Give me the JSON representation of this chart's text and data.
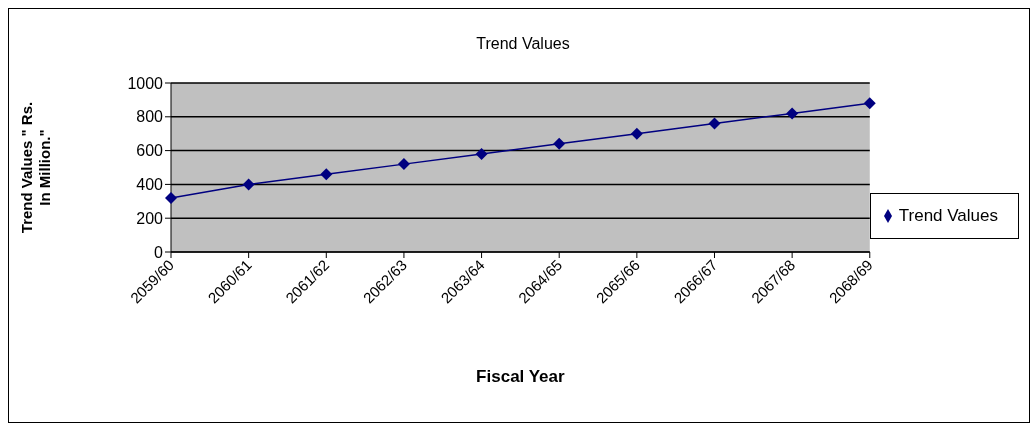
{
  "chart_data": {
    "type": "line",
    "title": "Trend Values",
    "xlabel": "Fiscal Year",
    "ylabel": "Trend Values \" Rs. In Million.\"",
    "categories": [
      "2059/60",
      "2060/61",
      "2061/62",
      "2062/63",
      "2063/64",
      "2064/65",
      "2065/66",
      "2066/67",
      "2067/68",
      "2068/69"
    ],
    "series": [
      {
        "name": "Trend Values",
        "color": "#000080",
        "values": [
          320,
          400,
          460,
          520,
          580,
          640,
          700,
          760,
          820,
          880
        ]
      }
    ],
    "ylim": [
      0,
      1000
    ],
    "yticks": [
      0,
      200,
      400,
      600,
      800,
      1000
    ],
    "grid": "y",
    "legend": "right",
    "marker": "diamond",
    "line_style": "solid"
  }
}
